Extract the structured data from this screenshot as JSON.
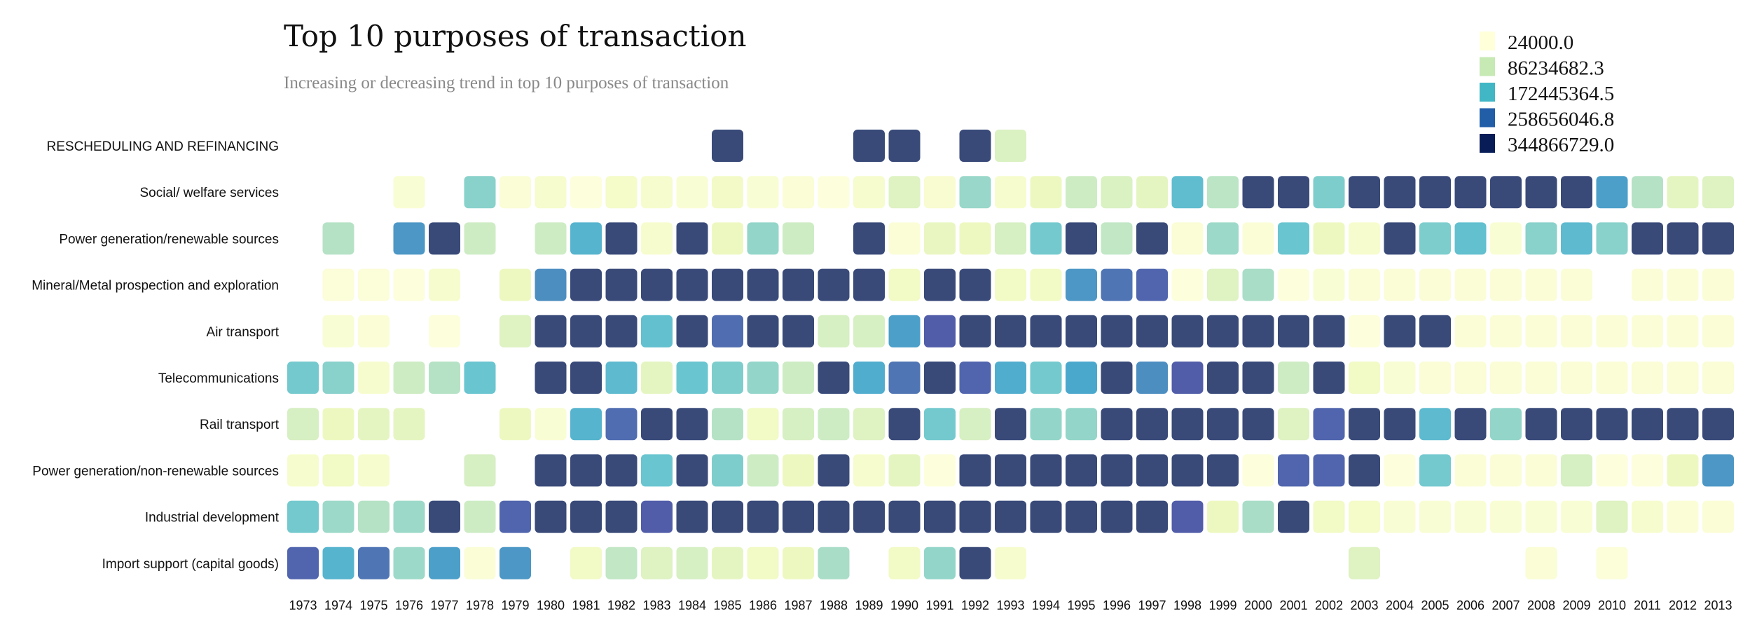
{
  "chart_data": {
    "type": "heatmap",
    "title": "Top 10 purposes of transaction",
    "subtitle": "Increasing or decreasing trend in top 10 purposes of transaction",
    "legend_placement": "top-right",
    "legend": [
      "24000.0",
      "86234682.3",
      "172445364.5",
      "258656046.8",
      "344866729.0"
    ],
    "color_scale": [
      "#ffffd9",
      "#c7e9b4",
      "#41b6c4",
      "#225ea8",
      "#081d58"
    ],
    "columns": [
      "1973",
      "1974",
      "1975",
      "1976",
      "1977",
      "1978",
      "1979",
      "1980",
      "1981",
      "1982",
      "1983",
      "1984",
      "1985",
      "1986",
      "1987",
      "1988",
      "1989",
      "1990",
      "1991",
      "1992",
      "1993",
      "1994",
      "1995",
      "1996",
      "1997",
      "1998",
      "1999",
      "2000",
      "2001",
      "2002",
      "2003",
      "2004",
      "2005",
      "2006",
      "2007",
      "2008",
      "2009",
      "2010",
      "2011",
      "2012",
      "2013"
    ],
    "rows": [
      {
        "label": "RESCHEDULING AND REFINANCING",
        "values": [
          null,
          null,
          null,
          null,
          null,
          null,
          null,
          null,
          null,
          null,
          null,
          null,
          344866729,
          null,
          null,
          null,
          344866729,
          344866729,
          null,
          344866729,
          65000000,
          null,
          null,
          null,
          null,
          null,
          null,
          null,
          null,
          null,
          null,
          null,
          null,
          null,
          null,
          null,
          null,
          null,
          null,
          null,
          null
        ]
      },
      {
        "label": "Social/ welfare services",
        "values": [
          null,
          null,
          null,
          15000000,
          null,
          140000000,
          12000000,
          22000000,
          5000000,
          25000000,
          20000000,
          15000000,
          28000000,
          15000000,
          12000000,
          5000000,
          20000000,
          60000000,
          18000000,
          125000000,
          20000000,
          40000000,
          80000000,
          65000000,
          50000000,
          185000000,
          95000000,
          344866729,
          344866729,
          150000000,
          344866729,
          344866729,
          344866729,
          344866729,
          344866729,
          344866729,
          344866729,
          230000000,
          100000000,
          50000000,
          60000000
        ]
      },
      {
        "label": "Power generation/renewable sources",
        "values": [
          null,
          100000000,
          null,
          240000000,
          344866729,
          80000000,
          null,
          80000000,
          200000000,
          344866729,
          20000000,
          344866729,
          40000000,
          130000000,
          80000000,
          null,
          344866729,
          10000000,
          45000000,
          40000000,
          70000000,
          160000000,
          344866729,
          90000000,
          344866729,
          12000000,
          120000000,
          10000000,
          170000000,
          40000000,
          20000000,
          344866729,
          150000000,
          180000000,
          15000000,
          140000000,
          190000000,
          140000000,
          344866729,
          344866729,
          344866729
        ]
      },
      {
        "label": "Mineral/Metal prospection and exploration",
        "values": [
          null,
          8000000,
          8000000,
          5000000,
          20000000,
          null,
          40000000,
          250000000,
          344866729,
          344866729,
          344866729,
          344866729,
          344866729,
          344866729,
          344866729,
          344866729,
          344866729,
          30000000,
          344866729,
          344866729,
          30000000,
          30000000,
          240000000,
          280000000,
          300000000,
          5000000,
          60000000,
          110000000,
          5000000,
          15000000,
          10000000,
          10000000,
          10000000,
          10000000,
          10000000,
          10000000,
          10000000,
          null,
          10000000,
          10000000,
          10000000
        ]
      },
      {
        "label": "Air transport",
        "values": [
          null,
          15000000,
          10000000,
          null,
          5000000,
          null,
          60000000,
          344866729,
          344866729,
          344866729,
          180000000,
          344866729,
          290000000,
          344866729,
          344866729,
          70000000,
          70000000,
          230000000,
          310000000,
          344866729,
          344866729,
          344866729,
          344866729,
          344866729,
          344866729,
          344866729,
          344866729,
          344866729,
          344866729,
          344866729,
          5000000,
          344866729,
          344866729,
          10000000,
          10000000,
          10000000,
          10000000,
          10000000,
          10000000,
          10000000,
          10000000
        ]
      },
      {
        "label": "Telecommunications",
        "values": [
          160000000,
          140000000,
          20000000,
          80000000,
          100000000,
          170000000,
          null,
          344866729,
          344866729,
          190000000,
          50000000,
          170000000,
          150000000,
          130000000,
          80000000,
          344866729,
          210000000,
          280000000,
          344866729,
          300000000,
          210000000,
          160000000,
          220000000,
          344866729,
          250000000,
          310000000,
          344866729,
          344866729,
          80000000,
          344866729,
          30000000,
          15000000,
          12000000,
          12000000,
          12000000,
          12000000,
          12000000,
          12000000,
          12000000,
          12000000,
          12000000
        ]
      },
      {
        "label": "Rail transport",
        "values": [
          70000000,
          40000000,
          50000000,
          50000000,
          null,
          null,
          40000000,
          15000000,
          200000000,
          290000000,
          344866729,
          344866729,
          100000000,
          30000000,
          70000000,
          80000000,
          60000000,
          344866729,
          160000000,
          70000000,
          344866729,
          130000000,
          130000000,
          344866729,
          344866729,
          344866729,
          344866729,
          344866729,
          60000000,
          300000000,
          344866729,
          344866729,
          190000000,
          344866729,
          130000000,
          344866729,
          344866729,
          344866729,
          344866729,
          344866729,
          344866729
        ]
      },
      {
        "label": "Power generation/non-renewable sources",
        "values": [
          20000000,
          30000000,
          20000000,
          null,
          null,
          70000000,
          null,
          344866729,
          344866729,
          344866729,
          170000000,
          344866729,
          150000000,
          80000000,
          40000000,
          344866729,
          20000000,
          50000000,
          5000000,
          344866729,
          344866729,
          344866729,
          344866729,
          344866729,
          344866729,
          344866729,
          344866729,
          5000000,
          300000000,
          300000000,
          344866729,
          5000000,
          160000000,
          10000000,
          10000000,
          10000000,
          70000000,
          5000000,
          5000000,
          40000000,
          240000000
        ]
      },
      {
        "label": "Industrial development",
        "values": [
          160000000,
          120000000,
          100000000,
          120000000,
          344866729,
          80000000,
          300000000,
          344866729,
          344866729,
          344866729,
          310000000,
          344866729,
          344866729,
          344866729,
          344866729,
          344866729,
          344866729,
          344866729,
          344866729,
          344866729,
          344866729,
          344866729,
          344866729,
          344866729,
          344866729,
          310000000,
          40000000,
          110000000,
          344866729,
          30000000,
          25000000,
          15000000,
          15000000,
          15000000,
          15000000,
          15000000,
          15000000,
          60000000,
          20000000,
          10000000,
          10000000
        ]
      },
      {
        "label": "Import support (capital goods)",
        "values": [
          300000000,
          200000000,
          280000000,
          120000000,
          230000000,
          10000000,
          240000000,
          null,
          30000000,
          90000000,
          60000000,
          70000000,
          50000000,
          30000000,
          40000000,
          110000000,
          null,
          30000000,
          130000000,
          344866729,
          20000000,
          null,
          null,
          null,
          null,
          null,
          null,
          null,
          null,
          null,
          60000000,
          null,
          null,
          null,
          null,
          12000000,
          null,
          8000000,
          null,
          null,
          null
        ]
      }
    ]
  }
}
